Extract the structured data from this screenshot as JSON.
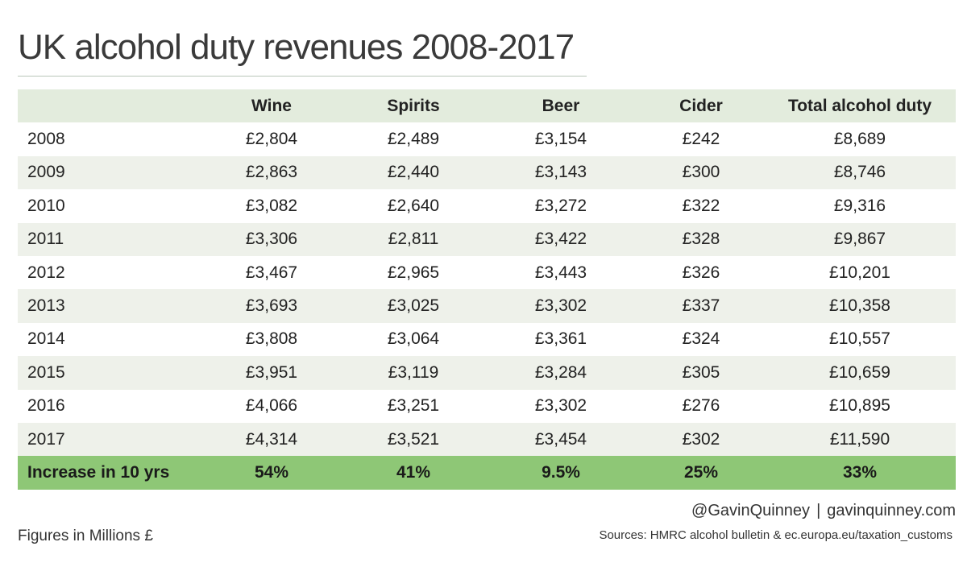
{
  "title": "UK alcohol duty revenues 2008-2017",
  "chart_data": {
    "type": "table",
    "title": "UK alcohol duty revenues 2008-2017",
    "columns": [
      "",
      "Wine",
      "Spirits",
      "Beer",
      "Cider",
      "Total alcohol duty"
    ],
    "rows": [
      [
        "2008",
        "£2,804",
        "£2,489",
        "£3,154",
        "£242",
        "£8,689"
      ],
      [
        "2009",
        "£2,863",
        "£2,440",
        "£3,143",
        "£300",
        "£8,746"
      ],
      [
        "2010",
        "£3,082",
        "£2,640",
        "£3,272",
        "£322",
        "£9,316"
      ],
      [
        "2011",
        "£3,306",
        "£2,811",
        "£3,422",
        "£328",
        "£9,867"
      ],
      [
        "2012",
        "£3,467",
        "£2,965",
        "£3,443",
        "£326",
        "£10,201"
      ],
      [
        "2013",
        "£3,693",
        "£3,025",
        "£3,302",
        "£337",
        "£10,358"
      ],
      [
        "2014",
        "£3,808",
        "£3,064",
        "£3,361",
        "£324",
        "£10,557"
      ],
      [
        "2015",
        "£3,951",
        "£3,119",
        "£3,284",
        "£305",
        "£10,659"
      ],
      [
        "2016",
        "£4,066",
        "£3,251",
        "£3,302",
        "£276",
        "£10,895"
      ],
      [
        "2017",
        "£4,314",
        "£3,521",
        "£3,454",
        "£302",
        "£11,590"
      ]
    ],
    "summary_row": [
      "Increase in 10 yrs",
      "54%",
      "41%",
      "9.5%",
      "25%",
      "33%"
    ],
    "units_note": "Figures in Millions £"
  },
  "footer": {
    "credit_handle": "@GavinQuinney",
    "credit_separator": "|",
    "credit_site": "gavinquinney.com",
    "sources": "Sources: HMRC alcohol bulletin & ec.europa.eu/taxation_customs"
  },
  "colors": {
    "header_row": "#e3ecdd",
    "alt_row": "#eef1ea",
    "summary_row": "#8ec776"
  }
}
